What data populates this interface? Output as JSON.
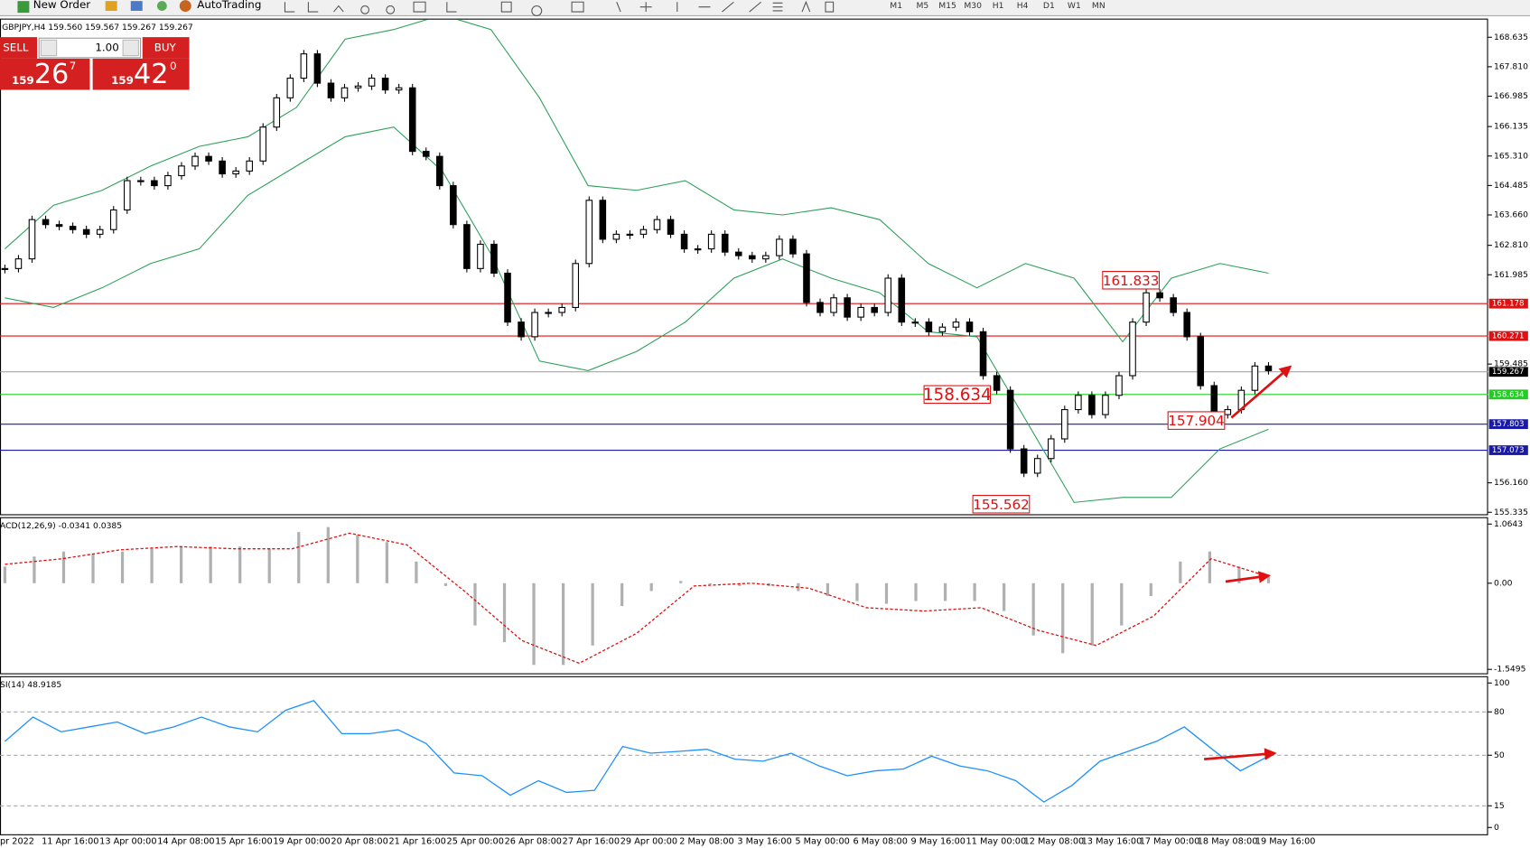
{
  "toolbar": {
    "new_order": "New Order",
    "auto_trading": "AutoTrading",
    "timeframes": [
      "M1",
      "M5",
      "M15",
      "M30",
      "H1",
      "H4",
      "D1",
      "W1",
      "MN"
    ]
  },
  "trade_panel": {
    "sell": "SELL",
    "lot": "1.00",
    "buy": "BUY",
    "sell_big": "159",
    "sell_main": "26",
    "sell_pip": "7",
    "buy_big": "159",
    "buy_main": "42",
    "buy_pip": "0"
  },
  "x_labels": [
    "pr 2022",
    "11 Apr 16:00",
    "13 Apr 00:00",
    "14 Apr 08:00",
    "15 Apr 16:00",
    "19 Apr 00:00",
    "20 Apr 08:00",
    "21 Apr 16:00",
    "25 Apr 00:00",
    "26 Apr 08:00",
    "27 Apr 16:00",
    "29 Apr 00:00",
    "2 May 08:00",
    "3 May 16:00",
    "5 May 00:00",
    "6 May 08:00",
    "9 May 16:00",
    "11 May 00:00",
    "12 May 08:00",
    "13 May 16:00",
    "17 May 00:00",
    "18 May 08:00",
    "19 May 16:00"
  ],
  "chart_data": [
    {
      "type": "candlestick",
      "title": "GBPJPY,H4  159.560 159.567 159.267 159.267",
      "values": [
        162.16,
        162.43,
        163.53,
        163.39,
        163.34,
        163.25,
        163.12,
        163.25,
        163.8,
        164.62,
        164.62,
        164.48,
        164.76,
        165.03,
        165.3,
        165.17,
        164.81,
        164.89,
        165.17,
        166.12,
        166.94,
        167.49,
        168.17,
        167.35,
        166.94,
        167.22,
        167.27,
        167.49,
        167.16,
        167.22,
        165.44,
        165.3,
        164.48,
        163.39,
        162.16,
        162.84,
        162.03,
        160.66,
        160.25,
        160.93,
        160.93,
        161.07,
        162.3,
        164.07,
        162.98,
        163.12,
        163.12,
        163.25,
        163.53,
        163.12,
        162.71,
        162.71,
        163.12,
        162.62,
        162.52,
        162.43,
        162.52,
        162.98,
        162.57,
        161.21,
        160.93,
        161.34,
        160.8,
        161.07,
        160.93,
        161.89,
        160.66,
        160.66,
        160.39,
        160.52,
        160.66,
        160.39,
        159.16,
        158.75,
        157.11,
        156.43,
        156.84,
        157.39,
        158.21,
        158.61,
        158.07,
        158.61,
        159.16,
        160.66,
        161.48,
        161.34,
        160.93,
        160.25,
        158.88,
        158.07,
        158.21,
        158.75,
        159.43,
        159.3
      ],
      "upper_band": [
        162.71,
        163.93,
        164.35,
        165.03,
        165.58,
        165.85,
        166.67,
        168.58,
        168.85,
        169.26,
        168.85,
        166.94,
        164.48,
        164.35,
        164.62,
        163.8,
        163.66,
        163.86,
        163.53,
        162.3,
        161.62,
        162.3,
        161.89,
        160.11,
        161.89,
        162.3,
        162.03
      ],
      "lower_band": [
        161.34,
        161.07,
        161.62,
        162.3,
        162.71,
        164.21,
        165.03,
        165.85,
        166.12,
        164.89,
        162.57,
        159.57,
        159.3,
        159.84,
        160.66,
        161.89,
        162.43,
        161.89,
        161.48,
        160.39,
        160.25,
        157.93,
        155.61,
        155.75,
        155.75,
        157.11,
        157.66
      ],
      "band_color": "#2ca05a",
      "ylim": [
        155.28,
        169.13
      ],
      "yticks": [
        {
          "value": 168.635,
          "label": "168.635"
        },
        {
          "value": 167.81,
          "label": "167.810"
        },
        {
          "value": 166.985,
          "label": "166.985"
        },
        {
          "value": 166.135,
          "label": "166.135"
        },
        {
          "value": 165.31,
          "label": "165.310"
        },
        {
          "value": 164.485,
          "label": "164.485"
        },
        {
          "value": 163.66,
          "label": "163.660"
        },
        {
          "value": 162.81,
          "label": "162.810"
        },
        {
          "value": 161.985,
          "label": "161.985"
        },
        {
          "value": 159.485,
          "label": "159.485"
        },
        {
          "value": 156.16,
          "label": "156.160"
        },
        {
          "value": 155.335,
          "label": "155.335"
        }
      ],
      "levels": [
        {
          "value": 161.178,
          "color": "#e01010"
        },
        {
          "value": 160.271,
          "color": "#e01010"
        },
        {
          "value": 159.267,
          "color": "#000000"
        },
        {
          "value": 158.634,
          "color": "#22cc22"
        },
        {
          "value": 157.803,
          "color": "#1a1aa8"
        },
        {
          "value": 157.073,
          "color": "#1a1aa8"
        }
      ],
      "annotations": [
        161.833,
        158.634,
        157.904,
        155.562
      ]
    },
    {
      "type": "macd",
      "title": "ACD(12,26,9) -0.0341 0.0385",
      "values": [
        0.3,
        0.48,
        0.57,
        0.53,
        0.57,
        0.62,
        0.66,
        0.66,
        0.66,
        0.62,
        0.92,
        1.01,
        0.87,
        0.74,
        0.39,
        -0.05,
        -0.76,
        -1.06,
        -1.47,
        -1.47,
        -1.12,
        -0.41,
        -0.14,
        0.04,
        -0.02,
        -0.05,
        -0.05,
        -0.14,
        -0.23,
        -0.32,
        -0.37,
        -0.32,
        -0.32,
        -0.32,
        -0.5,
        -0.94,
        -1.26,
        -1.12,
        -0.76,
        -0.23,
        0.39,
        0.57,
        0.3,
        0.12
      ],
      "signal": [
        0.34,
        0.44,
        0.6,
        0.66,
        0.62,
        0.62,
        0.9,
        0.69,
        -0.14,
        -1.03,
        -1.44,
        -0.9,
        -0.05,
        0,
        -0.09,
        -0.44,
        -0.5,
        -0.44,
        -0.85,
        -1.12,
        -0.59,
        0.44,
        0.12
      ],
      "color": "#b0b0b0",
      "signal_color": "#e01010",
      "ylim": [
        -1.62,
        1.188
      ],
      "yticks": [
        1.0643,
        {
          "value": 0,
          "label": "0.00"
        },
        -1.5495
      ]
    },
    {
      "type": "line",
      "title": "SI(14) 48.9185",
      "values": [
        59.5,
        76.4,
        66.2,
        69.6,
        73.0,
        64.9,
        69.6,
        76.4,
        69.6,
        66.2,
        81.1,
        87.8,
        64.9,
        64.9,
        67.6,
        58.1,
        37.8,
        35.8,
        22.3,
        32.4,
        24.3,
        25.7,
        56.1,
        51.4,
        52.7,
        54.1,
        47.3,
        45.9,
        51.4,
        42.6,
        35.8,
        39.2,
        40.5,
        49.3,
        42.6,
        39.2,
        32.4,
        17.6,
        29.1,
        45.9,
        52.7,
        59.5,
        69.6,
        54.1,
        39.2,
        49.3
      ],
      "color": "#1e90ff",
      "ylim": [
        -4.7,
        104.7
      ],
      "yticks": [
        100,
        80,
        50,
        15,
        0
      ],
      "levels": [
        80,
        50,
        15
      ]
    }
  ]
}
